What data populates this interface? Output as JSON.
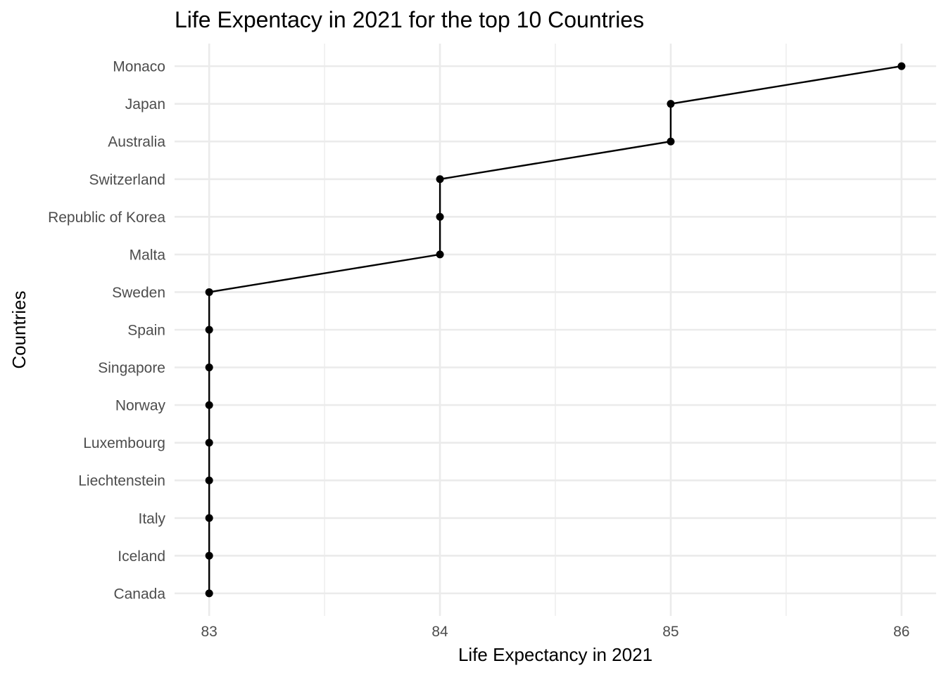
{
  "chart_data": {
    "type": "line",
    "title": "Life Expentacy in 2021 for the top 10 Countries",
    "xlabel": "Life Expectancy in 2021",
    "ylabel": "Countries",
    "xlim": [
      82.85,
      86.15
    ],
    "x_ticks": [
      83,
      84,
      85,
      86
    ],
    "x_minor_ticks": [
      83.5,
      84.5,
      85.5
    ],
    "categories": [
      "Canada",
      "Iceland",
      "Italy",
      "Liechtenstein",
      "Luxembourg",
      "Norway",
      "Singapore",
      "Spain",
      "Sweden",
      "Malta",
      "Republic of Korea",
      "Switzerland",
      "Australia",
      "Japan",
      "Monaco"
    ],
    "values": [
      83,
      83,
      83,
      83,
      83,
      83,
      83,
      83,
      83,
      84,
      84,
      84,
      85,
      85,
      86
    ],
    "grid": true,
    "legend": "none",
    "colors": {
      "line": "#000000",
      "point": "#000000",
      "grid": "#ebebeb",
      "tick_text": "#4d4d4d"
    }
  }
}
